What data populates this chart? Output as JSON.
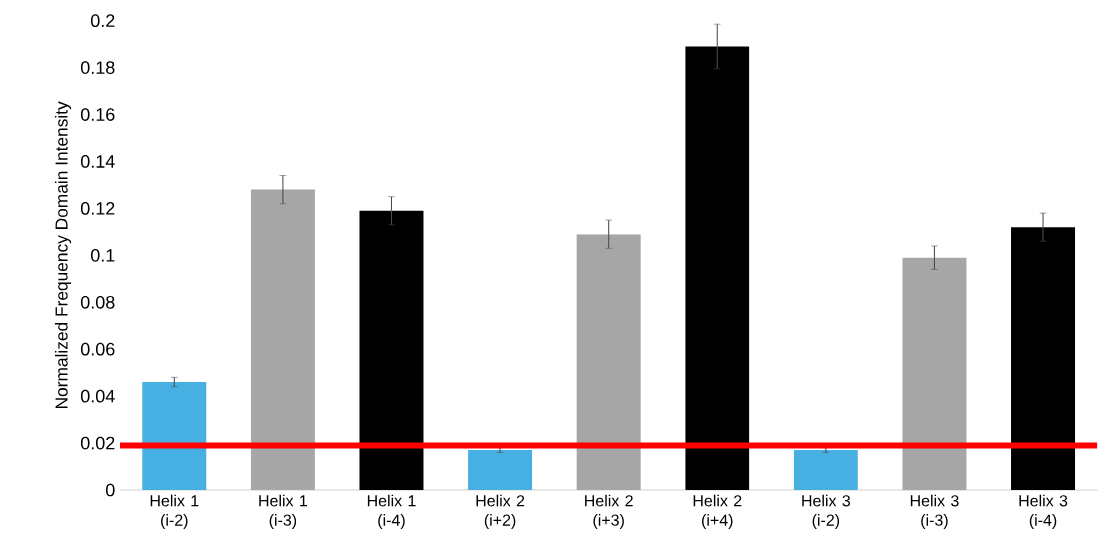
{
  "chart_data": {
    "type": "bar",
    "ylabel": "Normalized Frequency Domain Intensity",
    "categories": [
      "Helix 1 (i-2)",
      "Helix 1 (i-3)",
      "Helix 1 (i-4)",
      "Helix 2 (i+2)",
      "Helix 2 (i+3)",
      "Helix 2 (i+4)",
      "Helix 3 (i-2)",
      "Helix 3 (i-3)",
      "Helix 3 (i-4)"
    ],
    "values": [
      0.046,
      0.128,
      0.119,
      0.017,
      0.109,
      0.189,
      0.017,
      0.099,
      0.112
    ],
    "errors": [
      0.002,
      0.006,
      0.006,
      0.001,
      0.006,
      0.0095,
      0.001,
      0.005,
      0.006
    ],
    "colors": [
      "#45b0e1",
      "#a6a6a6",
      "#000000",
      "#45b0e1",
      "#a6a6a6",
      "#000000",
      "#45b0e1",
      "#a6a6a6",
      "#000000"
    ],
    "ylim": [
      0,
      0.2
    ],
    "yticks": [
      0,
      0.02,
      0.04,
      0.06,
      0.08,
      0.1,
      0.12,
      0.14,
      0.16,
      0.18,
      0.2
    ],
    "ref_lines": [
      {
        "axis": "y",
        "value": 0.019,
        "color": "#ff0000"
      }
    ],
    "grid": false
  }
}
